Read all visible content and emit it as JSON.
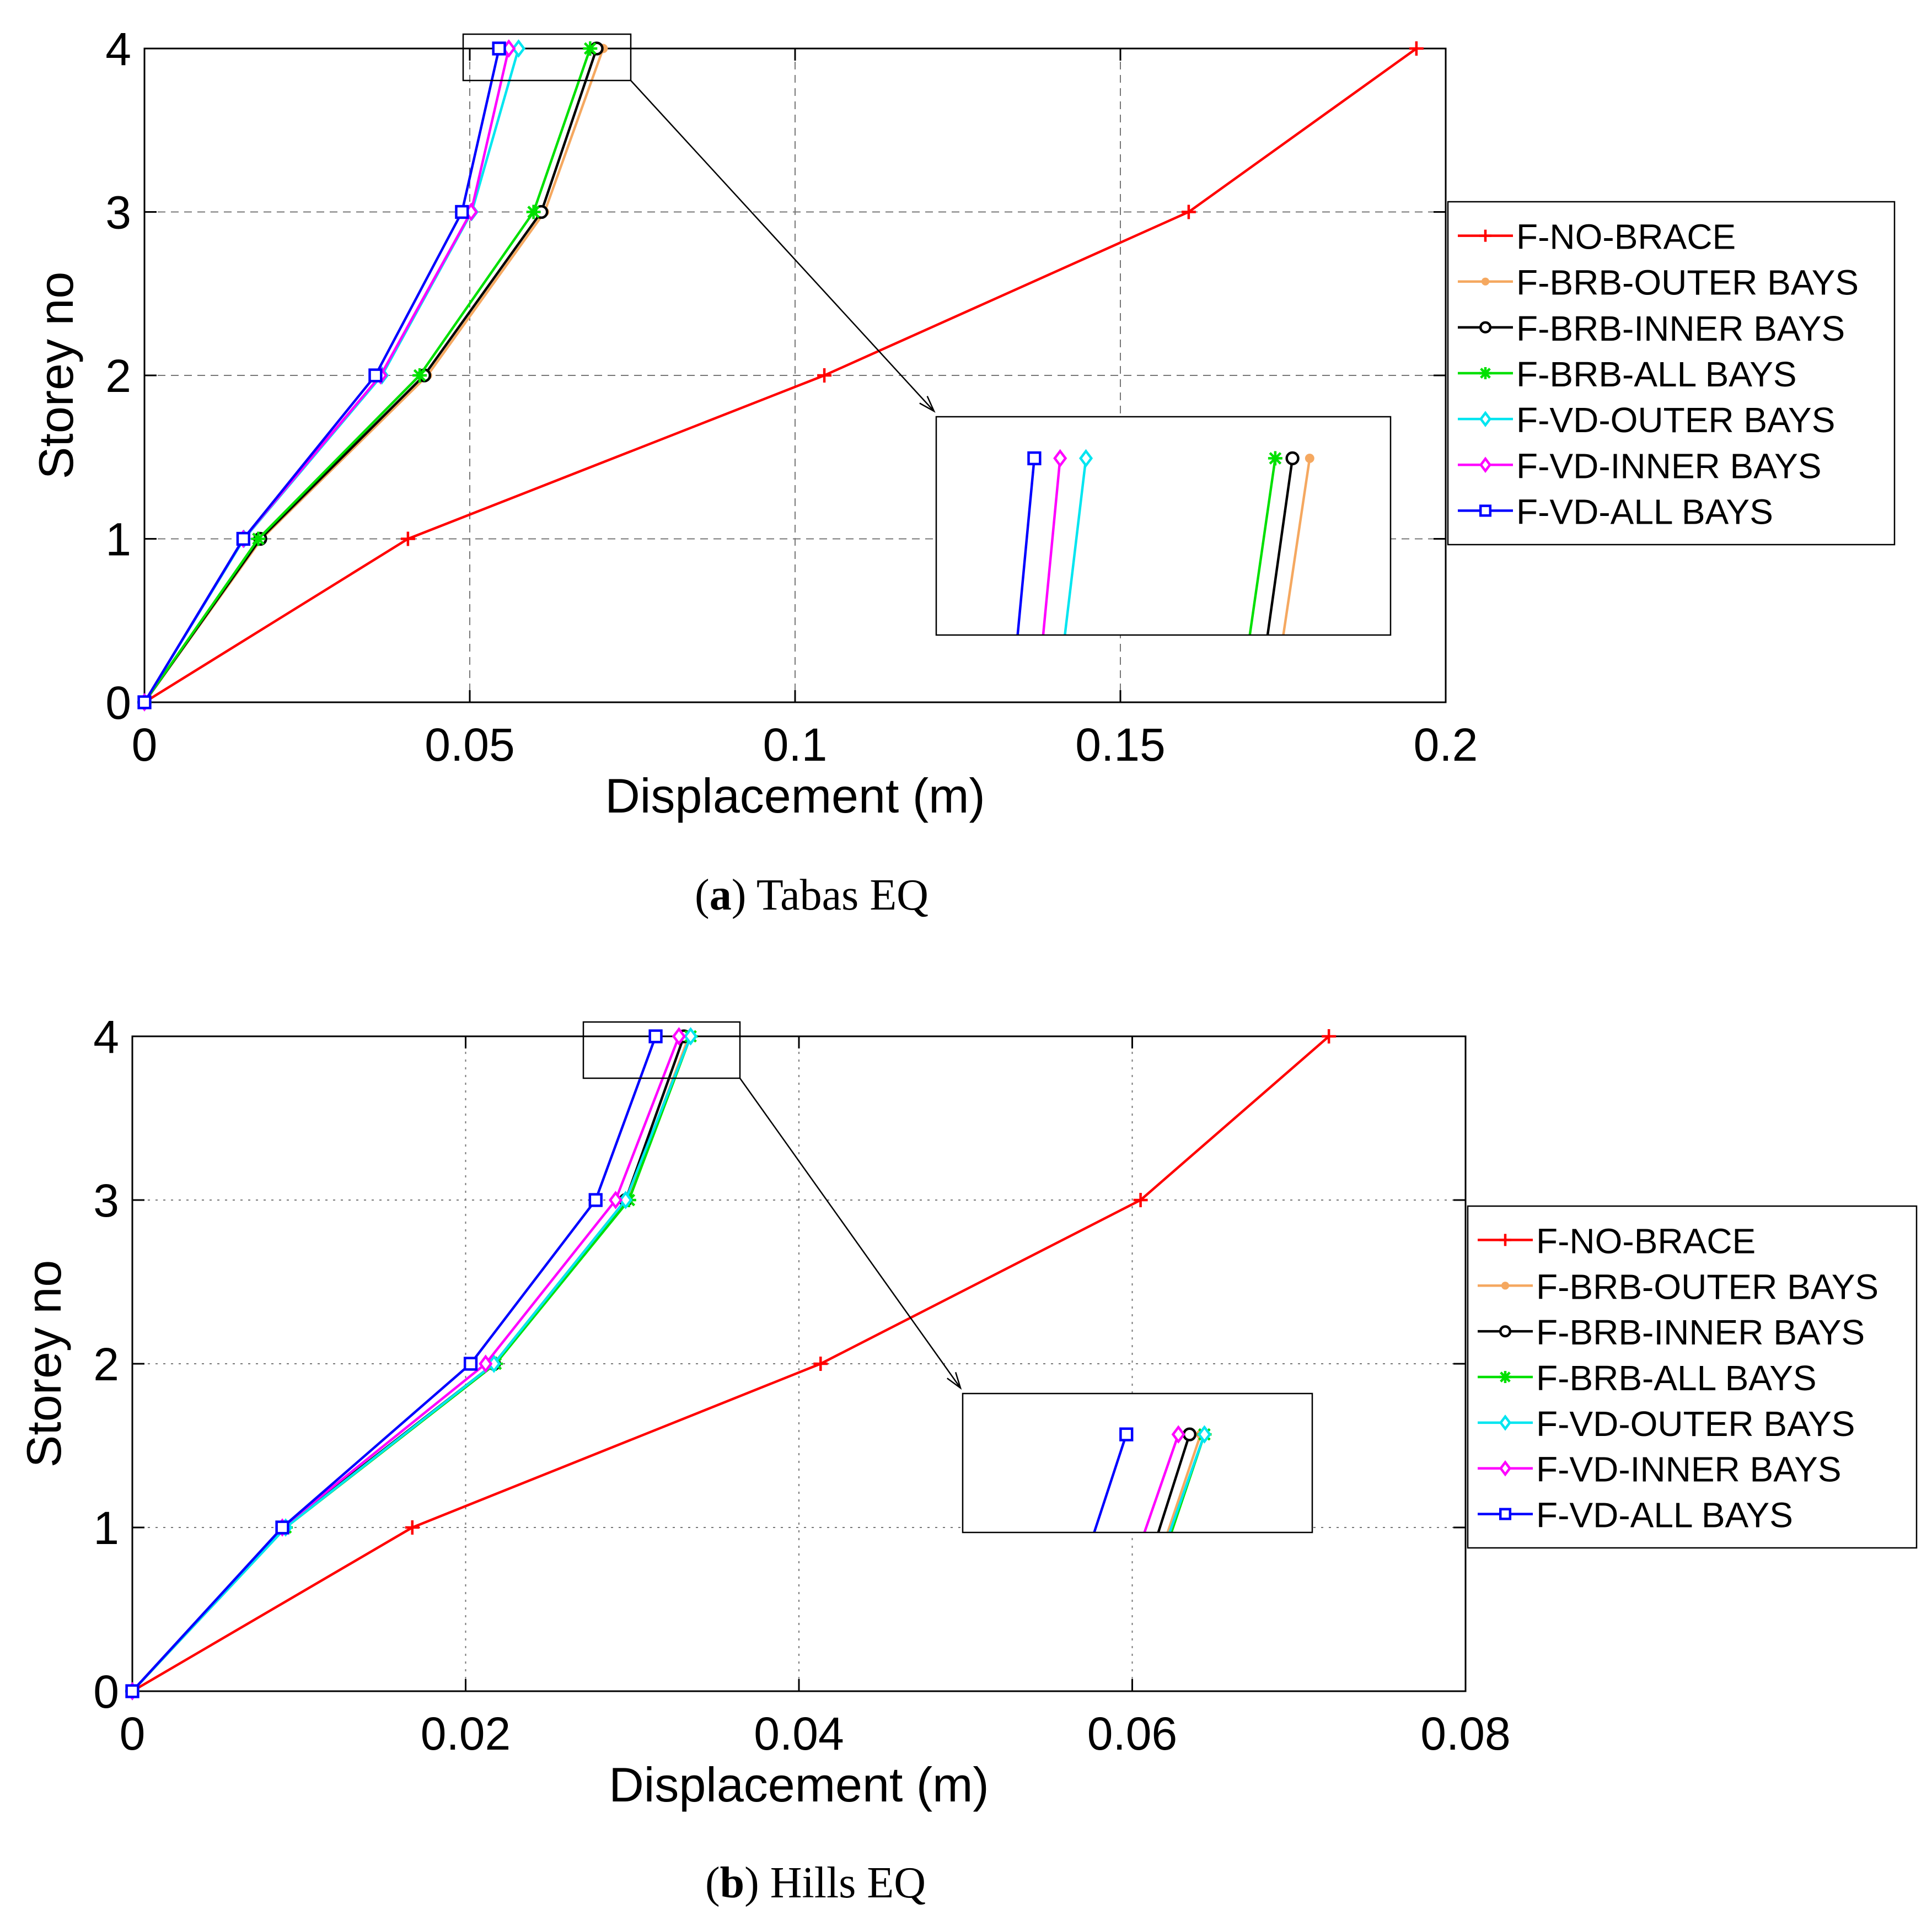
{
  "colors": {
    "F-NO-BRACE": "#ff0000",
    "F-BRB-OUTER BAYS": "#f5a860",
    "F-BRB-INNER BAYS": "#000000",
    "F-BRB-ALL BAYS": "#00e000",
    "F-VD-OUTER BAYS": "#00e5f0",
    "F-VD-INNER BAYS": "#ff00ff",
    "F-VD-ALL BAYS": "#0000ff"
  },
  "chart_data": [
    {
      "type": "line",
      "caption_letter": "a",
      "caption_rest": " Tabas EQ",
      "xlabel": "Displacement (m)",
      "ylabel": "Storey no",
      "xlim": [
        0,
        0.2
      ],
      "ylim": [
        0,
        4
      ],
      "xticks": [
        "0",
        "0.05",
        "0.1",
        "0.15",
        "0.2"
      ],
      "yticks": [
        "0",
        "1",
        "2",
        "3",
        "4"
      ],
      "grid": "dashed",
      "legend_position": "right",
      "y": [
        0,
        1,
        2,
        3,
        4
      ],
      "series": [
        {
          "name": "F-NO-BRACE",
          "marker": "plus",
          "values": [
            0,
            0.0405,
            0.1045,
            0.1605,
            0.1955
          ]
        },
        {
          "name": "F-BRB-OUTER BAYS",
          "marker": "dot",
          "values": [
            0,
            0.018,
            0.0435,
            0.0615,
            0.0705
          ]
        },
        {
          "name": "F-BRB-INNER BAYS",
          "marker": "circle",
          "values": [
            0,
            0.0178,
            0.043,
            0.061,
            0.0695
          ]
        },
        {
          "name": "F-BRB-ALL BAYS",
          "marker": "star",
          "values": [
            0,
            0.0175,
            0.0423,
            0.0598,
            0.0685
          ]
        },
        {
          "name": "F-VD-OUTER BAYS",
          "marker": "diamond",
          "values": [
            0,
            0.0153,
            0.0365,
            0.0503,
            0.0575
          ]
        },
        {
          "name": "F-VD-INNER BAYS",
          "marker": "diamond",
          "values": [
            0,
            0.0152,
            0.0363,
            0.0502,
            0.056
          ]
        },
        {
          "name": "F-VD-ALL BAYS",
          "marker": "square",
          "values": [
            0,
            0.0152,
            0.0355,
            0.0488,
            0.0545
          ]
        }
      ],
      "inset": {
        "xlim": [
          0.0488,
          0.0752
        ],
        "ylim": [
          3.83,
          4.04
        ]
      }
    },
    {
      "type": "line",
      "caption_letter": "b",
      "caption_rest": " Hills EQ",
      "xlabel": "Displacement (m)",
      "ylabel": "Storey no",
      "xlim": [
        0,
        0.08
      ],
      "ylim": [
        0,
        4
      ],
      "xticks": [
        "0",
        "0.02",
        "0.04",
        "0.06",
        "0.08"
      ],
      "yticks": [
        "0",
        "1",
        "2",
        "3",
        "4"
      ],
      "grid": "dotted",
      "legend_position": "right",
      "y": [
        0,
        1,
        2,
        3,
        4
      ],
      "series": [
        {
          "name": "F-NO-BRACE",
          "marker": "plus",
          "values": [
            0,
            0.0168,
            0.0413,
            0.0605,
            0.0718
          ]
        },
        {
          "name": "F-BRB-OUTER BAYS",
          "marker": "dot",
          "values": [
            0,
            0.0092,
            0.0218,
            0.0297,
            0.0334
          ]
        },
        {
          "name": "F-BRB-INNER BAYS",
          "marker": "circle",
          "values": [
            0,
            0.0091,
            0.0217,
            0.0296,
            0.0331
          ]
        },
        {
          "name": "F-BRB-ALL BAYS",
          "marker": "star",
          "values": [
            0,
            0.0092,
            0.0218,
            0.0298,
            0.0335
          ]
        },
        {
          "name": "F-VD-OUTER BAYS",
          "marker": "diamond",
          "values": [
            0,
            0.0092,
            0.0217,
            0.0296,
            0.0335
          ]
        },
        {
          "name": "F-VD-INNER BAYS",
          "marker": "diamond",
          "values": [
            0,
            0.009,
            0.0212,
            0.029,
            0.0328
          ]
        },
        {
          "name": "F-VD-ALL BAYS",
          "marker": "square",
          "values": [
            0,
            0.009,
            0.0203,
            0.0278,
            0.0314
          ]
        }
      ],
      "inset": {
        "xlim": [
          0.027,
          0.0364
        ],
        "ylim": [
          3.76,
          4.1
        ]
      }
    }
  ]
}
